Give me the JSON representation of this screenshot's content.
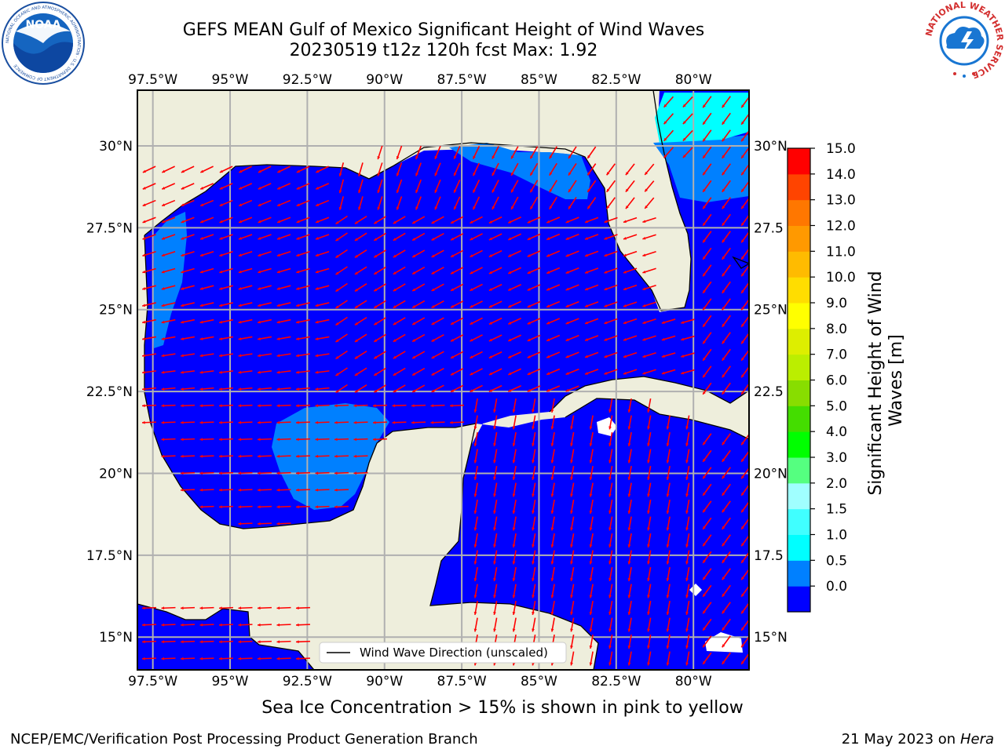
{
  "header": {
    "title_line1": "GEFS MEAN Gulf of Mexico Significant Height of Wind Waves",
    "title_line2": "20230519 t12z 120h fcst   Max: 1.92"
  },
  "logos": {
    "noaa": {
      "text": "NOAA",
      "ring_text": "NATIONAL OCEANIC AND ATMOSPHERIC ADMINISTRATION · U.S. DEPARTMENT OF COMMERCE"
    },
    "nws": {
      "ring_text": "NATIONAL WEATHER SERVICE"
    }
  },
  "map": {
    "lon_ticks": [
      "97.5°W",
      "95°W",
      "92.5°W",
      "90°W",
      "87.5°W",
      "85°W",
      "82.5°W",
      "80°W"
    ],
    "lon_values": [
      -97.5,
      -95,
      -92.5,
      -90,
      -87.5,
      -85,
      -82.5,
      -80
    ],
    "lat_left_ticks": [
      "30°N",
      "27.5°N",
      "25°N",
      "22.5°N",
      "20°N",
      "17.5°N",
      "15°N"
    ],
    "lat_right_ticks": [
      "30°N",
      "27.5",
      "25°N",
      "22.5",
      "20°N",
      "17.5",
      "15°N"
    ],
    "lat_values": [
      30,
      27.5,
      25,
      22.5,
      20,
      17.5,
      15
    ],
    "extent": {
      "lon_min": -98,
      "lon_max": -78.2,
      "lat_min": 14,
      "lat_max": 31.7
    },
    "legend_label": "Wind Wave Direction (unscaled)",
    "colors": {
      "water_low": "#0000FF",
      "water_mid": "#0080FF",
      "water_high": "#00FFFF",
      "land": "#EEEEDC",
      "arrow": "#FF0000",
      "grid": "#B0B0B0"
    }
  },
  "colorbar": {
    "label_line1": "Significant Height of Wind",
    "label_line2": "Waves [m]",
    "ticks": [
      "15.0",
      "14.0",
      "13.0",
      "12.0",
      "11.0",
      "10.0",
      "9.0",
      "8.0",
      "7.0",
      "6.0",
      "5.0",
      "4.0",
      "3.0",
      "2.0",
      "1.5",
      "1.0",
      "0.5",
      "0.0"
    ],
    "colors_bottom_to_top": [
      "#0000FF",
      "#0080FF",
      "#00FFFF",
      "#40FFFF",
      "#A0FFFF",
      "#55FF80",
      "#00FF00",
      "#44DD00",
      "#88DD00",
      "#BBEE00",
      "#DDEE00",
      "#FFFF00",
      "#FFDD00",
      "#FFBB00",
      "#FF9900",
      "#FF7700",
      "#FF4400",
      "#FF0000"
    ]
  },
  "footer": {
    "note": "Sea Ice Concentration > 15% is shown in pink to yellow",
    "credit": "NCEP/EMC/Verification Post Processing Product Generation Branch",
    "date": "21 May 2023 on",
    "machine": "Hera"
  }
}
